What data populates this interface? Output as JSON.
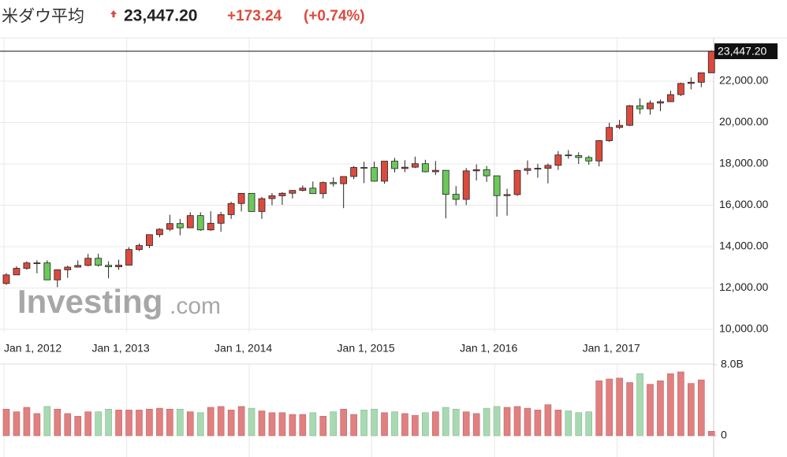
{
  "header": {
    "title": "米ダウ平均",
    "change": "+173.24",
    "change_pct": "(+0.74%)"
  },
  "chart_data": {
    "type": "candlestick",
    "watermark": [
      "Investing",
      ".com"
    ],
    "categories": [
      "Jan 1, 2012",
      null,
      null,
      null,
      null,
      null,
      null,
      null,
      null,
      null,
      null,
      null,
      "Jan 1, 2013",
      null,
      null,
      null,
      null,
      null,
      null,
      null,
      null,
      null,
      null,
      null,
      "Jan 1, 2014",
      null,
      null,
      null,
      null,
      null,
      null,
      null,
      null,
      null,
      null,
      null,
      "Jan 1, 2015",
      null,
      null,
      null,
      null,
      null,
      null,
      null,
      null,
      null,
      null,
      null,
      "Jan 1, 2016",
      null,
      null,
      null,
      null,
      null,
      null,
      null,
      null,
      null,
      null,
      null,
      "Jan 1, 2017",
      null,
      null,
      null,
      null,
      null,
      null,
      null,
      null,
      null
    ],
    "open": [
      12218,
      12633,
      12952,
      13212,
      13214,
      12393,
      12880,
      13009,
      13091,
      13437,
      13096,
      13026,
      13104,
      13861,
      14054,
      14579,
      14840,
      15116,
      14910,
      15500,
      14810,
      15130,
      15546,
      16086,
      16577,
      15699,
      16322,
      16458,
      16581,
      16717,
      16827,
      16563,
      17098,
      17043,
      17391,
      17828,
      17823,
      17165,
      18133,
      17776,
      17841,
      18011,
      17620,
      17690,
      16528,
      16285,
      17664,
      17720,
      17425,
      16466,
      16517,
      17685,
      17774,
      17787,
      17930,
      18432,
      18401,
      18308,
      18142,
      19124,
      19763,
      19864,
      20812,
      20663,
      20941,
      21009,
      21350,
      21891,
      21948,
      22405
    ],
    "high": [
      12720,
      13050,
      13290,
      13340,
      13340,
      12900,
      13080,
      13330,
      13650,
      13660,
      13290,
      13370,
      13970,
      14150,
      14590,
      14890,
      15540,
      15340,
      15660,
      15660,
      15710,
      15680,
      16170,
      16590,
      16590,
      16400,
      16590,
      16630,
      16740,
      16960,
      17150,
      17150,
      17350,
      17400,
      17900,
      18100,
      18110,
      18140,
      18290,
      18180,
      18350,
      18200,
      18140,
      17700,
      16930,
      17800,
      17980,
      17900,
      17430,
      16800,
      17720,
      18170,
      18000,
      18020,
      18620,
      18670,
      18560,
      18400,
      19150,
      19990,
      20130,
      20850,
      21170,
      21070,
      21110,
      21540,
      21930,
      22180,
      22420,
      23485
    ],
    "low": [
      12150,
      12630,
      12880,
      12710,
      12390,
      12040,
      12490,
      12990,
      13050,
      13040,
      12470,
      12880,
      13100,
      13780,
      13930,
      14450,
      14750,
      14550,
      14900,
      14760,
      14760,
      14720,
      15340,
      15700,
      15690,
      15340,
      16000,
      16020,
      16330,
      16670,
      16560,
      16330,
      16900,
      15860,
      17260,
      17070,
      17140,
      17040,
      17590,
      17600,
      17800,
      17590,
      17460,
      15370,
      16000,
      16010,
      17200,
      17130,
      15450,
      15500,
      16450,
      17480,
      17330,
      17060,
      17710,
      18250,
      18000,
      17960,
      17880,
      19060,
      19680,
      19830,
      20410,
      20380,
      20550,
      20990,
      21280,
      21600,
      21710,
      22400
    ],
    "close": [
      12633,
      12952,
      13212,
      13214,
      12393,
      12880,
      13009,
      13091,
      13437,
      13096,
      13026,
      13104,
      13861,
      14054,
      14579,
      14840,
      15116,
      14910,
      15500,
      14810,
      15130,
      15546,
      16086,
      16577,
      15699,
      16322,
      16458,
      16581,
      16717,
      16827,
      16563,
      17098,
      17043,
      17391,
      17828,
      17823,
      17165,
      18133,
      17776,
      17841,
      18011,
      17620,
      17690,
      16528,
      16285,
      17664,
      17720,
      17425,
      16466,
      16517,
      17685,
      17774,
      17787,
      17930,
      18432,
      18401,
      18308,
      18142,
      19124,
      19763,
      19864,
      20812,
      20663,
      20941,
      21009,
      21350,
      21891,
      21948,
      22405,
      23447
    ],
    "up_color": "#dc4a3d",
    "down_color": "#6cc85a",
    "ylim": [
      10000,
      24020
    ],
    "yticks": [
      {
        "value": 10000,
        "label": "10,000.00"
      },
      {
        "value": 12000,
        "label": "12,000.00"
      },
      {
        "value": 14000,
        "label": "14,000.00"
      },
      {
        "value": 16000,
        "label": "16,000.00"
      },
      {
        "value": 18000,
        "label": "18,000.00"
      },
      {
        "value": 20000,
        "label": "20,000.00"
      },
      {
        "value": 22000,
        "label": "22,000.00"
      }
    ],
    "last_price": {
      "value": 23447.2,
      "label": "23,447.20"
    },
    "grid": true,
    "volume": {
      "values": [
        3.0,
        2.7,
        3.2,
        2.5,
        3.3,
        3.0,
        2.5,
        2.2,
        2.7,
        2.7,
        3.0,
        2.9,
        2.9,
        2.9,
        3.0,
        3.1,
        3.0,
        3.0,
        2.7,
        2.6,
        3.2,
        3.3,
        2.9,
        3.3,
        3.1,
        2.8,
        2.6,
        2.6,
        2.4,
        2.4,
        2.6,
        2.2,
        2.7,
        3.0,
        2.4,
        2.9,
        3.0,
        2.6,
        2.7,
        2.5,
        2.3,
        2.6,
        2.7,
        3.2,
        3.0,
        2.7,
        2.5,
        3.1,
        3.3,
        3.2,
        3.3,
        3.1,
        2.9,
        3.5,
        2.9,
        2.8,
        2.6,
        2.7,
        6.2,
        6.4,
        6.5,
        6.0,
        7.0,
        5.8,
        6.2,
        7.0,
        7.2,
        5.9,
        6.3,
        0.5
      ],
      "up_color": "#e08080",
      "down_color": "#a9d9b2",
      "ylim": [
        0,
        8
      ],
      "yticks": [
        0,
        {
          "value": 8,
          "label": "8.0B"
        }
      ]
    }
  }
}
